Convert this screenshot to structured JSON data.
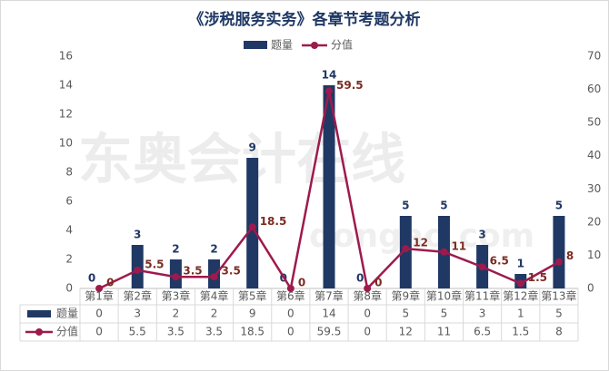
{
  "chart_data": {
    "type": "bar_line",
    "title": "《涉税服务实务》各章节考题分析",
    "watermark": "东奥会计在线",
    "watermark_url": "dongao.com",
    "categories": [
      "第1章",
      "第2章",
      "第3章",
      "第4章",
      "第5章",
      "第6章",
      "第7章",
      "第8章",
      "第9章",
      "第10章",
      "第11章",
      "第12章",
      "第13章"
    ],
    "series": [
      {
        "name": "题量",
        "type": "bar",
        "color": "#203864",
        "values": [
          0,
          3,
          2,
          2,
          9,
          0,
          14,
          0,
          5,
          5,
          3,
          1,
          5
        ]
      },
      {
        "name": "分值",
        "type": "line",
        "axis": "y2",
        "color": "#9e1a4c",
        "values": [
          0,
          5.5,
          3.5,
          3.5,
          18.5,
          0,
          59.5,
          0,
          12,
          11,
          6.5,
          1.5,
          8
        ]
      }
    ],
    "ylim": [
      0,
      16
    ],
    "yticks": [
      0,
      2,
      4,
      6,
      8,
      10,
      12,
      14,
      16
    ],
    "y2lim": [
      0,
      70
    ],
    "y2ticks": [
      0,
      10,
      20,
      30,
      40,
      50,
      60,
      70
    ],
    "grid": false
  }
}
